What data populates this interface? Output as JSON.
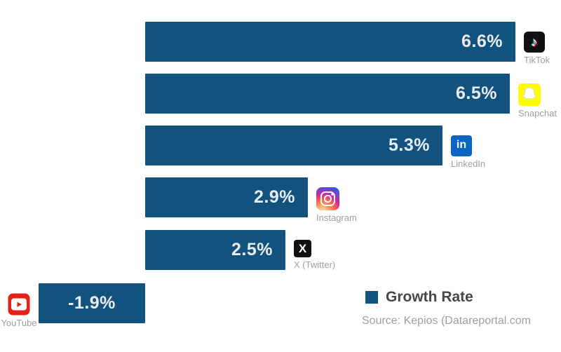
{
  "chart_data": {
    "type": "bar",
    "orientation": "horizontal",
    "legend_label": "Growth Rate",
    "legend_position": "bottom-right",
    "source": "Source: Kepios (Datareportal.com",
    "bar_color": "#11527F",
    "value_label_color": "#E9EDF1",
    "unit": "%",
    "gridlines": false,
    "axes_hidden": true,
    "categories": [
      "TikTok",
      "Snapchat",
      "LinkedIn",
      "Instagram",
      "X (Twitter)",
      "YouTube"
    ],
    "values": [
      6.6,
      6.5,
      5.3,
      2.9,
      2.5,
      -1.9
    ],
    "items": [
      {
        "label": "TikTok",
        "value": 6.6,
        "value_label": "6.6%",
        "icon": "tiktok-icon",
        "icon_bg": "#111111"
      },
      {
        "label": "Snapchat",
        "value": 6.5,
        "value_label": "6.5%",
        "icon": "snapchat-icon",
        "icon_bg": "#FFFC00"
      },
      {
        "label": "LinkedIn",
        "value": 5.3,
        "value_label": "5.3%",
        "icon": "linkedin-icon",
        "icon_bg": "#0A66C2"
      },
      {
        "label": "Instagram",
        "value": 2.9,
        "value_label": "2.9%",
        "icon": "instagram-icon",
        "icon_bg": "gradient"
      },
      {
        "label": "X (Twitter)",
        "value": 2.5,
        "value_label": "2.5%",
        "icon": "x-icon",
        "icon_bg": "#111111"
      },
      {
        "label": "YouTube",
        "value": -1.9,
        "value_label": "-1.9%",
        "icon": "youtube-icon",
        "icon_bg": "#E62117"
      }
    ]
  },
  "icons": {
    "tiktok_glyph": "♪",
    "linkedin_glyph": "in",
    "x_glyph": "X"
  }
}
